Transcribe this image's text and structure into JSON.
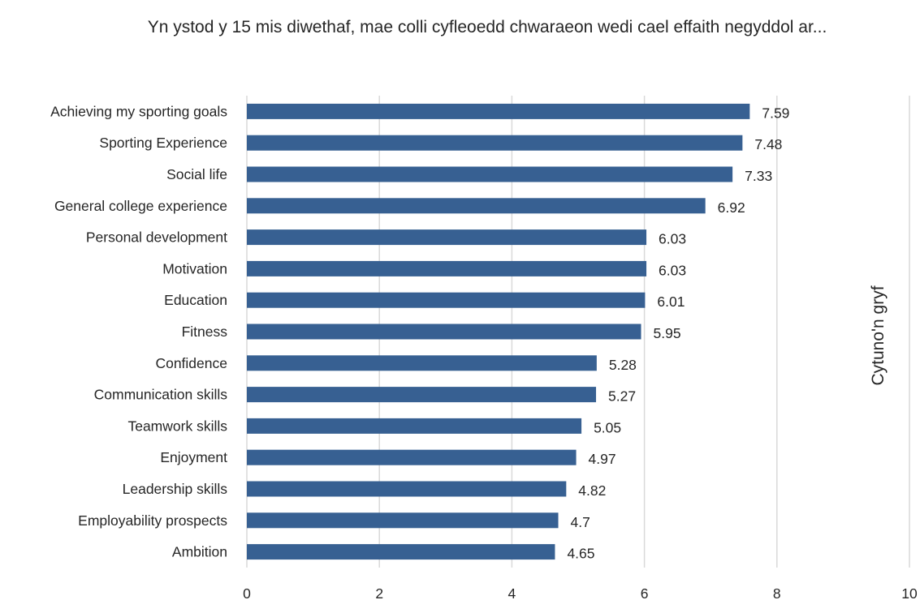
{
  "title": "Yn ystod y 15 mis diwethaf, mae colli cyfleoedd chwaraeon wedi cael effaith negyddol ar...",
  "side_label": "Cytuno'n gryf",
  "colors": {
    "bar": "#376092",
    "grid": "#d9d9d9",
    "text": "#262626"
  },
  "chart_data": {
    "type": "bar",
    "orientation": "horizontal",
    "title": "Yn ystod y 15 mis diwethaf, mae colli cyfleoedd chwaraeon wedi cael effaith negyddol ar...",
    "categories": [
      "Achieving my sporting goals",
      "Sporting Experience",
      "Social life",
      "General college experience",
      "Personal development",
      "Motivation",
      "Education",
      "Fitness",
      "Confidence",
      "Communication skills",
      "Teamwork skills",
      "Enjoyment",
      "Leadership skills",
      "Employability prospects",
      "Ambition"
    ],
    "values": [
      7.59,
      7.48,
      7.33,
      6.92,
      6.03,
      6.03,
      6.01,
      5.95,
      5.28,
      5.27,
      5.05,
      4.97,
      4.82,
      4.7,
      4.65
    ],
    "value_labels": [
      "7.59",
      "7.48",
      "7.33",
      "6.92",
      "6.03",
      "6.03",
      "6.01",
      "5.95",
      "5.28",
      "5.27",
      "5.05",
      "4.97",
      "4.82",
      "4.7",
      "4.65"
    ],
    "xlim": [
      0,
      10
    ],
    "xticks": [
      "0",
      "2",
      "4",
      "6",
      "8",
      "10"
    ],
    "grid": true,
    "xlabel": "",
    "ylabel": ""
  }
}
